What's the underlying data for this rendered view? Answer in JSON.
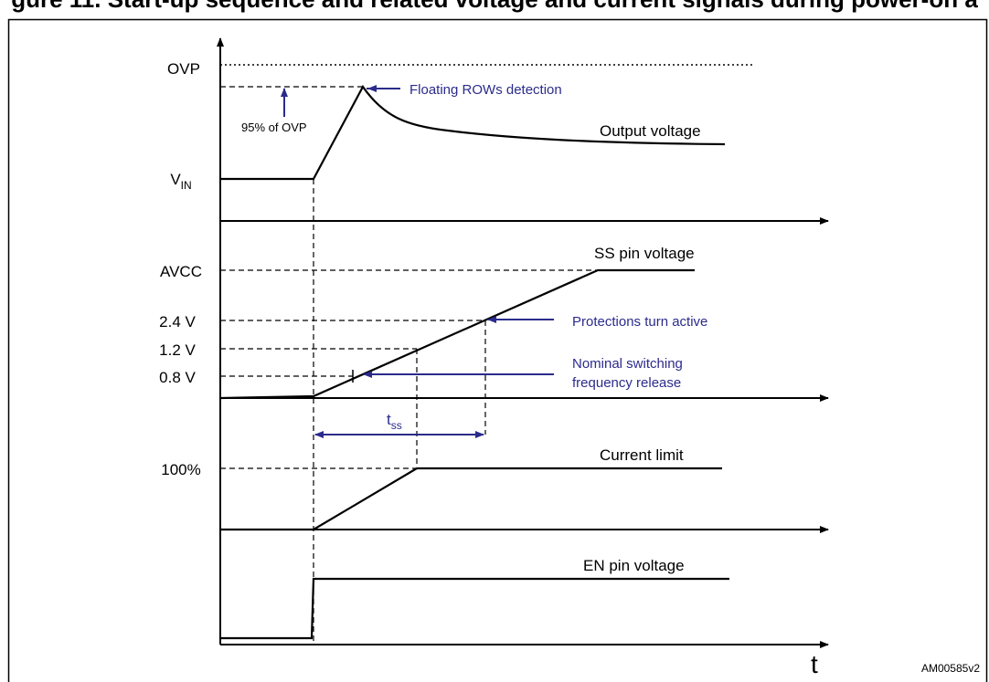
{
  "title_strip": "gure 11. Start-up sequence and related voltage and current signals during power-on a",
  "labels": {
    "ovp": "OVP",
    "vin_main": "V",
    "vin_sub": "IN",
    "pct_ovp": "95% of OVP",
    "floating_rows": "Floating ROWs detection",
    "output_voltage": "Output voltage",
    "ss_pin_voltage": "SS pin voltage",
    "avcc": "AVCC",
    "v24": "2.4 V",
    "v12": "1.2 V",
    "v08": "0.8 V",
    "protections": "Protections turn active",
    "nominal_line1": "Nominal switching",
    "nominal_line2": "frequency release",
    "tss_main": "t",
    "tss_sub": "ss",
    "pct100": "100%",
    "current_limit": "Current limit",
    "en_pin_voltage": "EN pin voltage",
    "t_axis": "t",
    "doc_code": "AM00585v2"
  },
  "colors": {
    "annotation": "#2b2b8c",
    "line": "#000000"
  }
}
